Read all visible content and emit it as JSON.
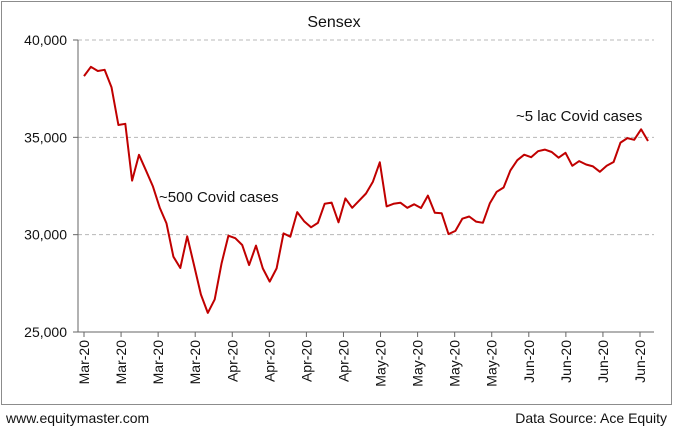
{
  "footer": {
    "left": "www.equitymaster.com",
    "right": "Data Source: Ace Equity"
  },
  "chart_data": {
    "type": "line",
    "title": "Sensex",
    "xlabel": "",
    "ylabel": "",
    "ylim": [
      25000,
      40000
    ],
    "yticks": [
      25000,
      30000,
      35000,
      40000
    ],
    "ytick_labels": [
      "25,000",
      "30,000",
      "35,000",
      "40,000"
    ],
    "grid": "horizontal dashed",
    "x_tick_labels": [
      "Mar-20",
      "Mar-20",
      "Mar-20",
      "Mar-20",
      "Apr-20",
      "Apr-20",
      "Apr-20",
      "Apr-20",
      "May-20",
      "May-20",
      "May-20",
      "May-20",
      "Jun-20",
      "Jun-20",
      "Jun-20",
      "Jun-20"
    ],
    "line_color": "#c00000",
    "series": [
      {
        "values": [
          38145,
          38624,
          38410,
          38470,
          37576,
          35634,
          35697,
          32778,
          34103,
          33307,
          32494,
          31390,
          30579,
          28869,
          28288,
          29916,
          28440,
          26925,
          25981,
          26674,
          28536,
          29947,
          29816,
          29468,
          28439,
          29440,
          28265,
          27591,
          28265,
          30067,
          29894,
          31160,
          30690,
          30380,
          30602,
          31589,
          31648,
          30636,
          31863,
          31380,
          31743,
          32115,
          32721,
          33717,
          31453,
          31588,
          31643,
          31379,
          31561,
          31371,
          32008,
          31122,
          31097,
          30029,
          30196,
          30819,
          30933,
          30673,
          30609,
          31605,
          32200,
          32424,
          33303,
          33825,
          34110,
          33980,
          34287,
          34370,
          34247,
          33956,
          34208,
          33539,
          33780,
          33605,
          33507,
          33229,
          33539,
          33731,
          34731,
          34961,
          34871,
          35414,
          34812
        ]
      }
    ],
    "annotations": [
      {
        "text": "~500 Covid cases"
      },
      {
        "text": "~5 lac Covid cases"
      }
    ]
  }
}
